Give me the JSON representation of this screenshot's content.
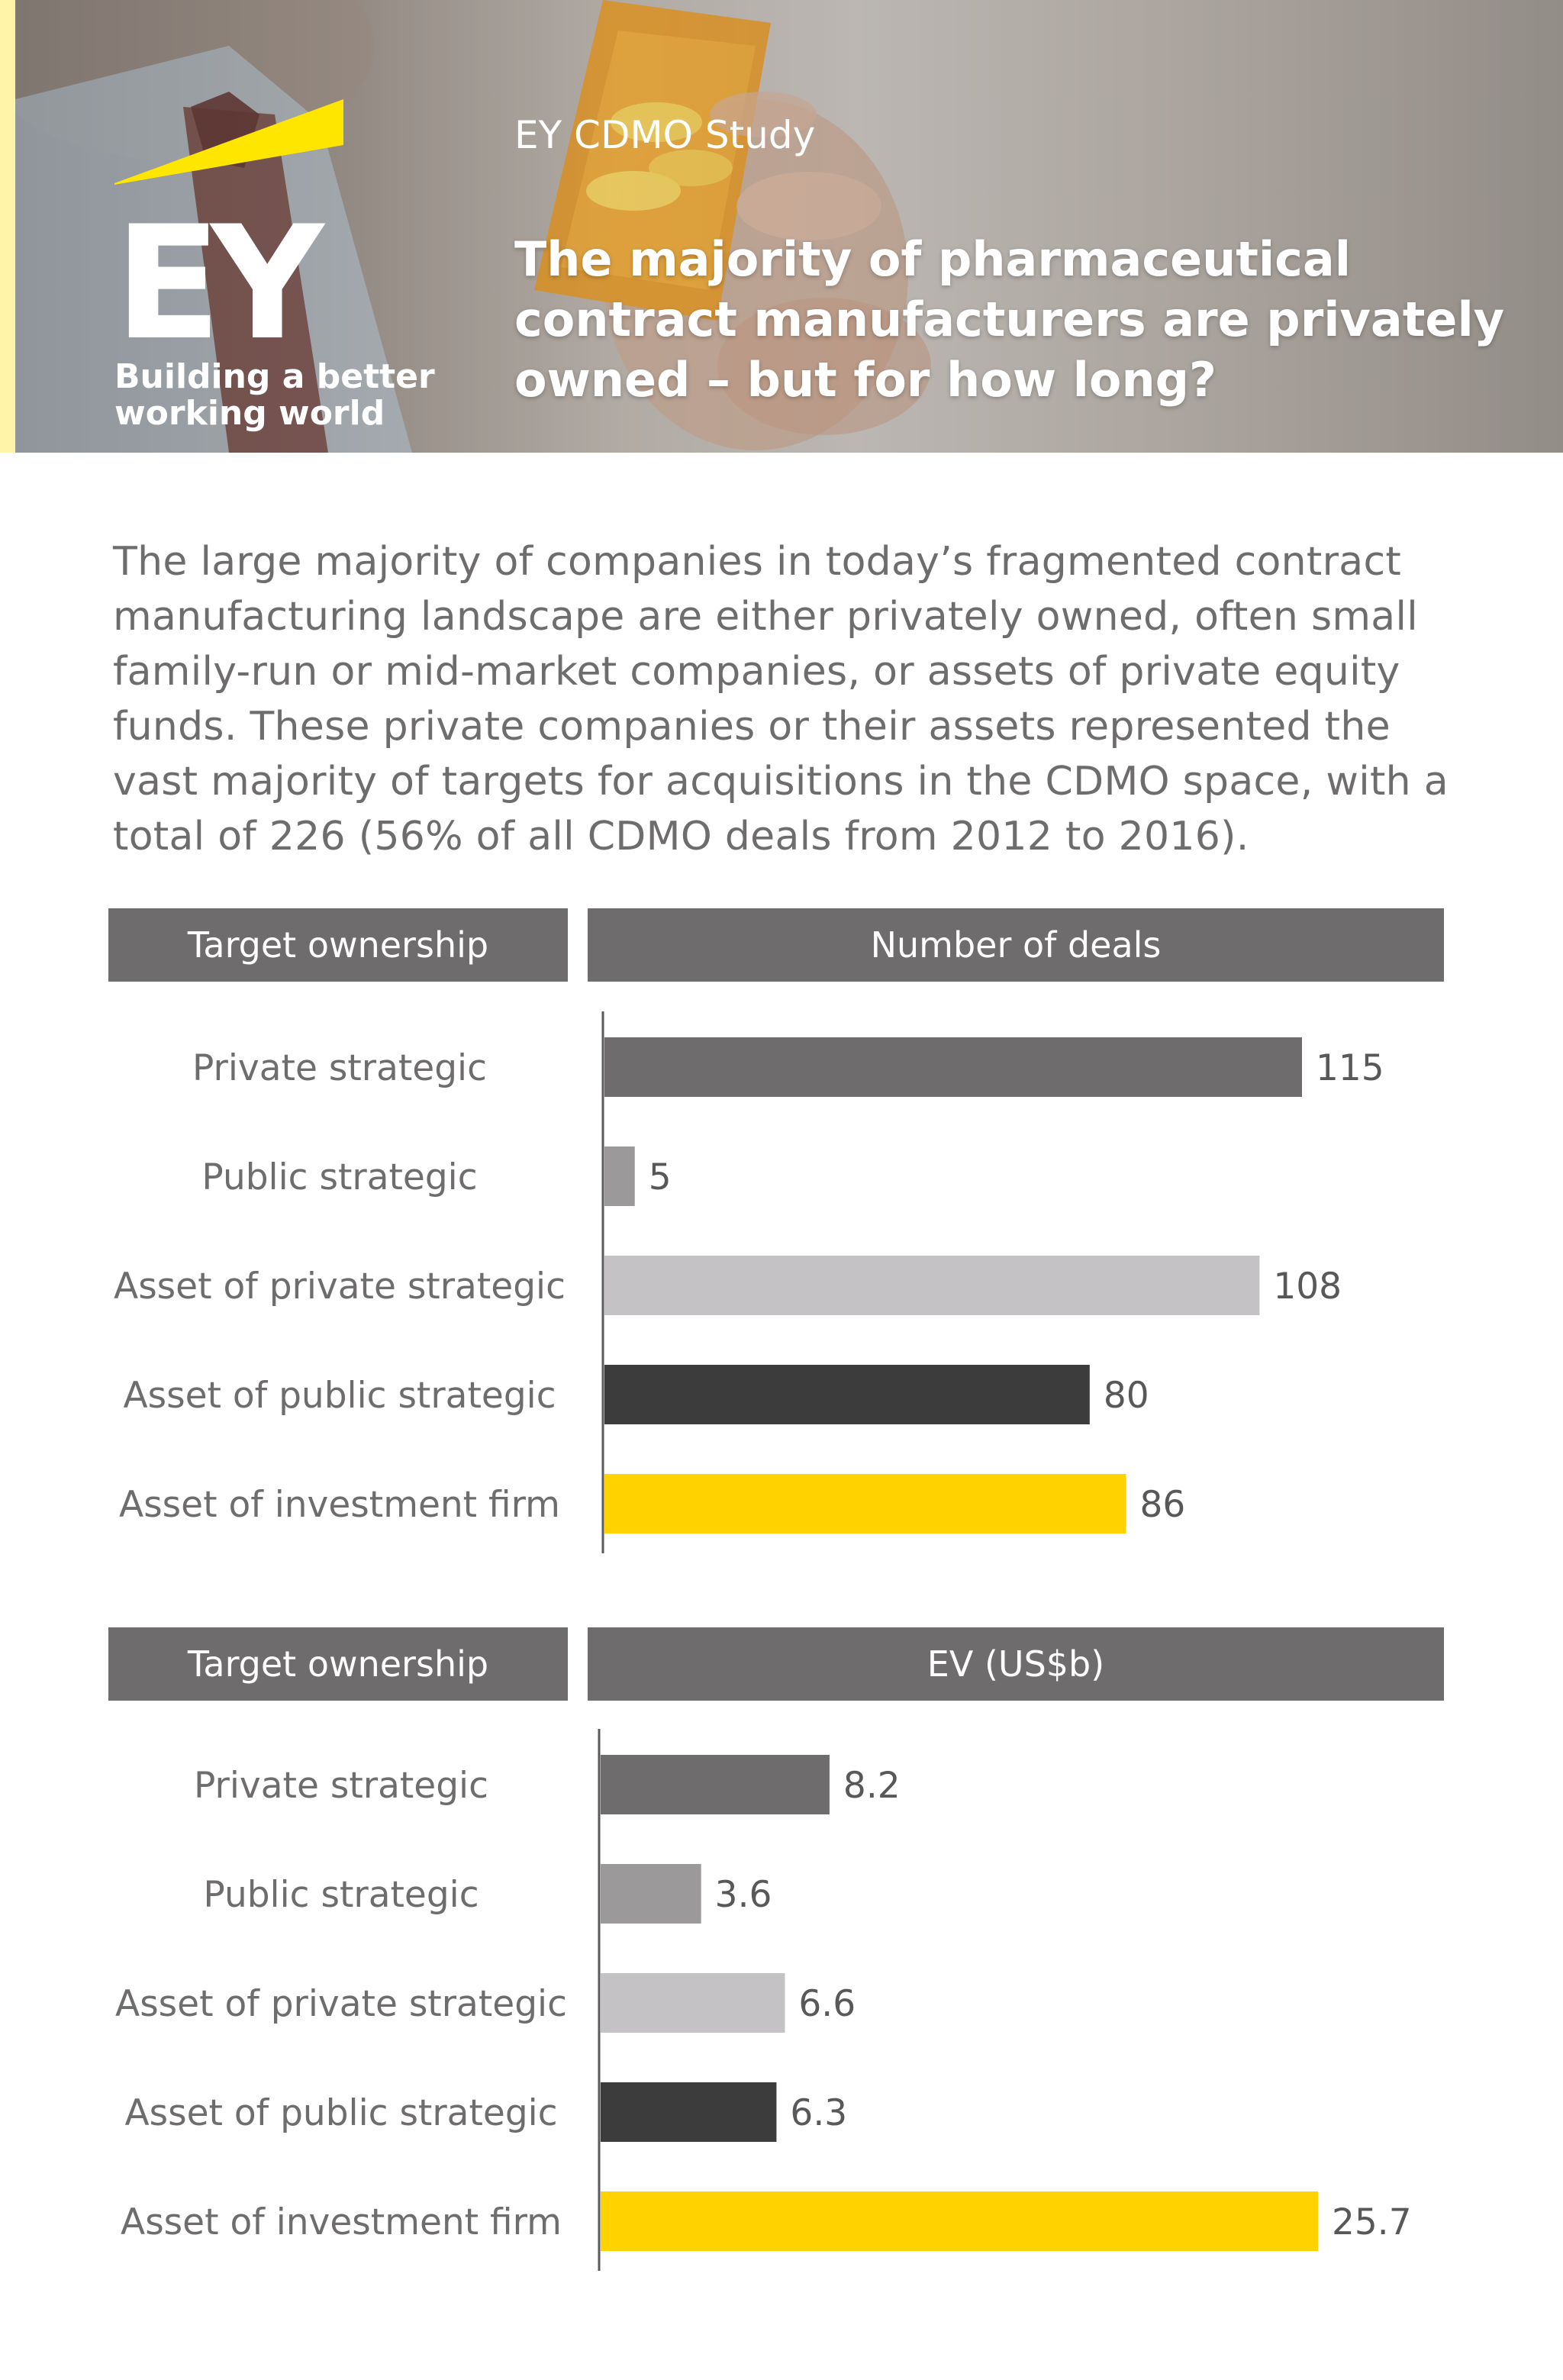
{
  "header": {
    "kicker": "EY CDMO Study",
    "title": "The majority of pharmaceutical contract manufacturers are privately owned – but for how long?",
    "logo_text": "EY",
    "logo_tagline": "Building a better working world"
  },
  "intro": "The large majority of companies in today’s fragmented contract manufacturing landscape are either privately owned, often small family-run or mid-market companies, or assets of private equity funds. These private companies or their assets represented the vast majority of targets for acquisitions in the CDMO space, with a total of 226 (56% of all CDMO deals from 2012 to 2016).",
  "colors": {
    "dark_gray": "#6e6c6d",
    "mid_gray": "#9b999a",
    "light_gray": "#c4c2c4",
    "charcoal": "#3d3c3d",
    "ey_yellow": "#ffd200"
  },
  "chart_data": [
    {
      "type": "bar",
      "orientation": "horizontal",
      "category_header": "Target ownership",
      "value_header": "Number of deals",
      "categories": [
        "Private strategic",
        "Public strategic",
        "Asset of private strategic",
        "Asset of public strategic",
        "Asset of investment firm"
      ],
      "values": [
        115,
        5,
        108,
        80,
        86
      ],
      "value_labels": [
        "115",
        "5",
        "108",
        "80",
        "86"
      ],
      "bar_colors": [
        "#6e6c6d",
        "#9b999a",
        "#c4c2c4",
        "#3d3c3d",
        "#ffd200"
      ]
    },
    {
      "type": "bar",
      "orientation": "horizontal",
      "category_header": "Target ownership",
      "value_header": "EV (US$b)",
      "categories": [
        "Private strategic",
        "Public strategic",
        "Asset of private strategic",
        "Asset of public strategic",
        "Asset of investment firm"
      ],
      "values": [
        8.2,
        3.6,
        6.6,
        6.3,
        25.7
      ],
      "value_labels": [
        "8.2",
        "3.6",
        "6.6",
        "6.3",
        "25.7"
      ],
      "bar_colors": [
        "#6e6c6d",
        "#9b999a",
        "#c4c2c4",
        "#3d3c3d",
        "#ffd200"
      ]
    }
  ]
}
